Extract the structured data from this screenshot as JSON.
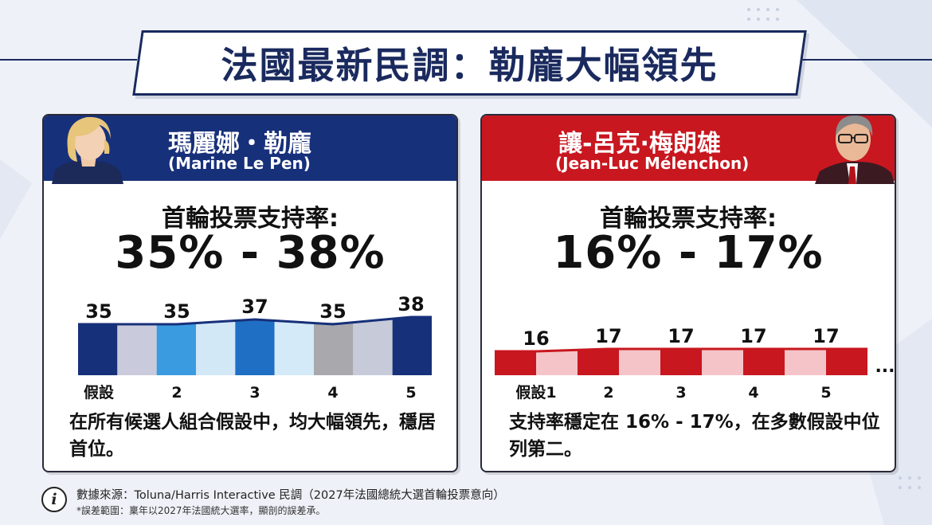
{
  "title": "法國最新民調：勒龐大幅領先",
  "candidates": [
    {
      "name": "瑪麗娜・勒龐",
      "name_latin": "(Marine Le Pen)",
      "rate_label": "首輪投票支持率:",
      "rate_range": "35% - 38%",
      "description": "在所有候選人組合假設中，均大幅領先，穩居首位。",
      "color": "#17307a"
    },
    {
      "name": "讓-呂克·梅朗雄",
      "name_latin": "(Jean-Luc Mélenchon)",
      "rate_label": "首輪投票支持率:",
      "rate_range": "16% - 17%",
      "description": "支持率穩定在 16% - 17%，在多數假設中位列第二。",
      "color": "#c8171f"
    }
  ],
  "chart_data": [
    {
      "type": "bar",
      "categories": [
        "假設",
        "2",
        "3",
        "4",
        "5"
      ],
      "values": [
        35,
        35,
        37,
        35,
        38
      ],
      "data_labels": [
        "35",
        "35",
        "37",
        "35",
        "38"
      ],
      "colors": [
        "#17307a",
        "#c9cbdc",
        "#3b9be0",
        "#d2e8f7",
        "#1f6fc4",
        "#d4eaf8",
        "#a9a9ad",
        "#c7cad8",
        "#17307a"
      ]
    },
    {
      "type": "bar",
      "categories": [
        "假設1",
        "2",
        "3",
        "4",
        "5"
      ],
      "values": [
        16,
        17,
        17,
        17,
        17
      ],
      "data_labels": [
        "16",
        "17",
        "17",
        "17",
        "17"
      ],
      "trailing": "...",
      "colors": [
        "#c8171f",
        "#f4c4c8",
        "#c8171f",
        "#f4c4c8",
        "#c8171f",
        "#f4c4c8",
        "#c8171f",
        "#f4c4c8",
        "#c8171f"
      ]
    }
  ],
  "footer": {
    "info_icon": "i",
    "source": "數據來源：Toluna/Harris Interactive 民調（2027年法國總統大選首輪投票意向）",
    "note": "*誤差範圍：稟年以2027年法國統大選率，顯剖的誤差承。"
  }
}
